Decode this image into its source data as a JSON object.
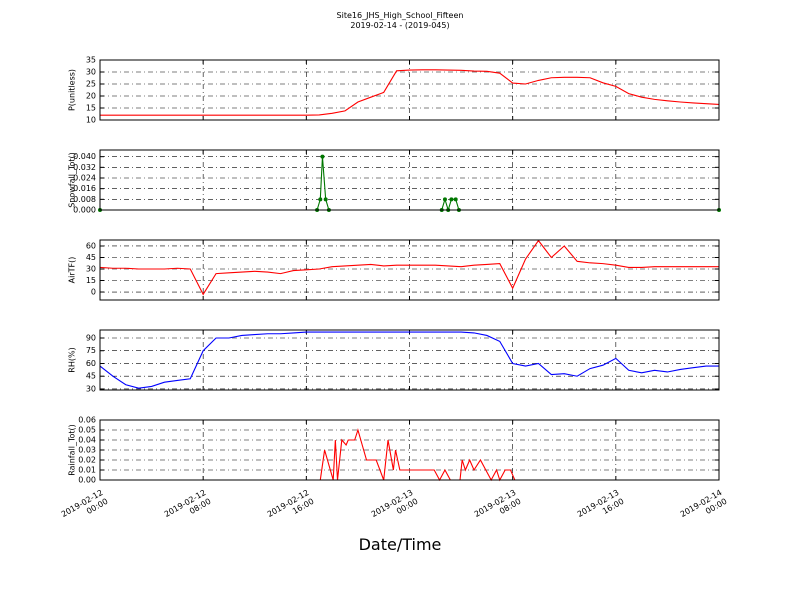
{
  "figure": {
    "title": "Site16_JHS_High_School_Fifteen",
    "subtitle": "2019-02-14 - (2019-045)",
    "xlabel": "Date/Time"
  },
  "chart_data": [
    {
      "type": "line",
      "ylabel": "P(unitless)",
      "ylim": [
        10,
        35
      ],
      "yticks": [
        10,
        15,
        20,
        25,
        30,
        35
      ],
      "grid": true,
      "xlim": [
        "2019-02-12 00:00",
        "2019-02-14 00:00"
      ],
      "xticks": [
        "2019-02-12 00:00",
        "2019-02-12 08:00",
        "2019-02-12 16:00",
        "2019-02-13 00:00",
        "2019-02-13 08:00",
        "2019-02-13 16:00",
        "2019-02-14 00:00"
      ],
      "x": [
        "2019-02-12 00:00",
        "2019-02-12 01:00",
        "2019-02-12 02:00",
        "2019-02-12 03:00",
        "2019-02-12 04:00",
        "2019-02-12 05:00",
        "2019-02-12 06:00",
        "2019-02-12 07:00",
        "2019-02-12 08:00",
        "2019-02-12 09:00",
        "2019-02-12 10:00",
        "2019-02-12 11:00",
        "2019-02-12 12:00",
        "2019-02-12 13:00",
        "2019-02-12 14:00",
        "2019-02-12 15:00",
        "2019-02-12 16:00",
        "2019-02-12 17:00",
        "2019-02-12 18:00",
        "2019-02-12 19:00",
        "2019-02-12 20:00",
        "2019-02-12 21:00",
        "2019-02-12 22:00",
        "2019-02-12 23:00",
        "2019-02-13 00:00",
        "2019-02-13 01:00",
        "2019-02-13 02:00",
        "2019-02-13 03:00",
        "2019-02-13 04:00",
        "2019-02-13 05:00",
        "2019-02-13 06:00",
        "2019-02-13 07:00",
        "2019-02-13 08:00",
        "2019-02-13 09:00",
        "2019-02-13 10:00",
        "2019-02-13 11:00",
        "2019-02-13 12:00",
        "2019-02-13 13:00",
        "2019-02-13 14:00",
        "2019-02-13 15:00",
        "2019-02-13 16:00",
        "2019-02-13 17:00",
        "2019-02-13 18:00",
        "2019-02-13 19:00",
        "2019-02-13 20:00",
        "2019-02-13 21:00",
        "2019-02-13 22:00",
        "2019-02-13 23:00",
        "2019-02-14 00:00"
      ],
      "series": [
        {
          "color": "#ff0000",
          "values": [
            12,
            12,
            12,
            12,
            12,
            12,
            12,
            12,
            12,
            12,
            12,
            12,
            12,
            12,
            12,
            12,
            12,
            12.1,
            12.8,
            13.8,
            17.5,
            19.5,
            21.5,
            30.5,
            30.8,
            30.9,
            30.9,
            30.8,
            30.7,
            30.4,
            30.3,
            29.5,
            25.4,
            25.0,
            26.5,
            27.6,
            27.8,
            27.8,
            27.6,
            25.5,
            24,
            21,
            19.5,
            18.6,
            18.0,
            17.5,
            17.1,
            16.8,
            16.5
          ]
        }
      ]
    },
    {
      "type": "line",
      "ylabel": "Snowfall_Tot()",
      "ylim": [
        0,
        0.045
      ],
      "yticks": [
        {
          "value": 0,
          "label": "0.000"
        },
        {
          "value": 0.008,
          "label": "0.008"
        },
        {
          "value": 0.016,
          "label": "0.016"
        },
        {
          "value": 0.024,
          "label": "0.024"
        },
        {
          "value": 0.032,
          "label": "0.032"
        },
        {
          "value": 0.04,
          "label": "0.040"
        }
      ],
      "grid": true,
      "marker": "o",
      "xlim": [
        "2019-02-12 00:00",
        "2019-02-14 00:00"
      ],
      "xticks": [
        "2019-02-12 00:00",
        "2019-02-12 08:00",
        "2019-02-12 16:00",
        "2019-02-13 00:00",
        "2019-02-13 08:00",
        "2019-02-13 16:00",
        "2019-02-14 00:00"
      ],
      "x": [
        "2019-02-12 00:00",
        "2019-02-12 16:50",
        "2019-02-12 17:05",
        "2019-02-12 17:15",
        "2019-02-12 17:30",
        "2019-02-12 17:45",
        "2019-02-13 02:30",
        "2019-02-13 02:45",
        "2019-02-13 03:00",
        "2019-02-13 03:15",
        "2019-02-13 03:35",
        "2019-02-13 03:50",
        "2019-02-14 00:00"
      ],
      "series": [
        {
          "color": "#007700",
          "values": [
            0,
            0,
            0.008,
            0.04,
            0.008,
            0,
            0,
            0.008,
            0,
            0.008,
            0.008,
            0,
            0
          ]
        }
      ]
    },
    {
      "type": "line",
      "ylabel": "AirTF()",
      "ylim": [
        -10.4,
        67.8
      ],
      "yticks": [
        0,
        15,
        30,
        45,
        60
      ],
      "grid": true,
      "xlim": [
        "2019-02-12 00:00",
        "2019-02-14 00:00"
      ],
      "xticks": [
        "2019-02-12 00:00",
        "2019-02-12 08:00",
        "2019-02-12 16:00",
        "2019-02-13 00:00",
        "2019-02-13 08:00",
        "2019-02-13 16:00",
        "2019-02-14 00:00"
      ],
      "x": [
        "2019-02-12 00:00",
        "2019-02-12 01:00",
        "2019-02-12 02:00",
        "2019-02-12 03:00",
        "2019-02-12 04:00",
        "2019-02-12 05:00",
        "2019-02-12 06:00",
        "2019-02-12 07:00",
        "2019-02-12 08:00",
        "2019-02-12 09:00",
        "2019-02-12 10:00",
        "2019-02-12 11:00",
        "2019-02-12 12:00",
        "2019-02-12 13:00",
        "2019-02-12 14:00",
        "2019-02-12 15:00",
        "2019-02-12 16:00",
        "2019-02-12 17:00",
        "2019-02-12 18:00",
        "2019-02-12 19:00",
        "2019-02-12 20:00",
        "2019-02-12 21:00",
        "2019-02-12 22:00",
        "2019-02-12 23:00",
        "2019-02-13 00:00",
        "2019-02-13 01:00",
        "2019-02-13 02:00",
        "2019-02-13 03:00",
        "2019-02-13 04:00",
        "2019-02-13 05:00",
        "2019-02-13 06:00",
        "2019-02-13 07:00",
        "2019-02-13 08:00",
        "2019-02-13 09:00",
        "2019-02-13 10:00",
        "2019-02-13 11:00",
        "2019-02-13 12:00",
        "2019-02-13 13:00",
        "2019-02-13 14:00",
        "2019-02-13 15:00",
        "2019-02-13 16:00",
        "2019-02-13 17:00",
        "2019-02-13 18:00",
        "2019-02-13 19:00",
        "2019-02-13 20:00",
        "2019-02-13 21:00",
        "2019-02-13 22:00",
        "2019-02-13 23:00",
        "2019-02-14 00:00"
      ],
      "series": [
        {
          "color": "#ff0000",
          "values": [
            32,
            31,
            31,
            30,
            30,
            30,
            31,
            30,
            -3,
            24,
            25,
            26,
            27,
            26,
            24,
            28,
            29,
            30,
            33,
            34,
            35,
            36,
            34,
            35,
            35,
            35,
            35,
            34,
            33,
            35,
            36,
            37,
            5,
            43,
            67,
            45,
            60,
            40,
            38,
            37,
            35,
            32,
            32,
            33,
            33,
            33,
            33,
            33,
            33
          ]
        }
      ]
    },
    {
      "type": "line",
      "ylabel": "RH(%)",
      "ylim": [
        28.8,
        99.4
      ],
      "yticks": [
        30,
        45,
        60,
        75,
        90
      ],
      "grid": true,
      "xlim": [
        "2019-02-12 00:00",
        "2019-02-14 00:00"
      ],
      "xticks": [
        "2019-02-12 00:00",
        "2019-02-12 08:00",
        "2019-02-12 16:00",
        "2019-02-13 00:00",
        "2019-02-13 08:00",
        "2019-02-13 16:00",
        "2019-02-14 00:00"
      ],
      "x": [
        "2019-02-12 00:00",
        "2019-02-12 01:00",
        "2019-02-12 02:00",
        "2019-02-12 03:00",
        "2019-02-12 04:00",
        "2019-02-12 05:00",
        "2019-02-12 06:00",
        "2019-02-12 07:00",
        "2019-02-12 08:00",
        "2019-02-12 09:00",
        "2019-02-12 10:00",
        "2019-02-12 11:00",
        "2019-02-12 12:00",
        "2019-02-12 13:00",
        "2019-02-12 14:00",
        "2019-02-12 15:00",
        "2019-02-12 16:00",
        "2019-02-12 17:00",
        "2019-02-12 18:00",
        "2019-02-12 19:00",
        "2019-02-12 20:00",
        "2019-02-12 21:00",
        "2019-02-12 22:00",
        "2019-02-12 23:00",
        "2019-02-13 00:00",
        "2019-02-13 01:00",
        "2019-02-13 02:00",
        "2019-02-13 03:00",
        "2019-02-13 04:00",
        "2019-02-13 05:00",
        "2019-02-13 06:00",
        "2019-02-13 07:00",
        "2019-02-13 08:00",
        "2019-02-13 09:00",
        "2019-02-13 10:00",
        "2019-02-13 11:00",
        "2019-02-13 12:00",
        "2019-02-13 13:00",
        "2019-02-13 14:00",
        "2019-02-13 15:00",
        "2019-02-13 16:00",
        "2019-02-13 17:00",
        "2019-02-13 18:00",
        "2019-02-13 19:00",
        "2019-02-13 20:00",
        "2019-02-13 21:00",
        "2019-02-13 22:00",
        "2019-02-13 23:00",
        "2019-02-14 00:00"
      ],
      "series": [
        {
          "color": "#0000ff",
          "values": [
            57,
            45,
            35,
            31,
            33,
            38,
            40,
            42,
            75,
            90,
            90,
            93,
            94,
            95,
            95,
            96,
            97,
            97,
            97,
            97,
            97,
            97,
            97,
            97,
            97,
            97,
            97,
            97,
            97,
            96,
            93,
            86,
            60,
            57,
            60,
            47,
            48,
            45,
            54,
            58,
            66,
            52,
            49,
            52,
            50,
            53,
            55,
            57,
            57
          ]
        }
      ]
    },
    {
      "type": "line",
      "ylabel": "Rainfall_Tot()",
      "ylim": [
        0,
        0.06
      ],
      "yticks": [
        {
          "value": 0,
          "label": "0.00"
        },
        {
          "value": 0.01,
          "label": "0.01"
        },
        {
          "value": 0.02,
          "label": "0.02"
        },
        {
          "value": 0.03,
          "label": "0.03"
        },
        {
          "value": 0.04,
          "label": "0.04"
        },
        {
          "value": 0.05,
          "label": "0.05"
        },
        {
          "value": 0.06,
          "label": "0.06"
        }
      ],
      "grid": true,
      "xlim": [
        "2019-02-12 00:00",
        "2019-02-14 00:00"
      ],
      "xticks": [
        "2019-02-12 00:00",
        "2019-02-12 08:00",
        "2019-02-12 16:00",
        "2019-02-13 00:00",
        "2019-02-13 08:00",
        "2019-02-13 16:00",
        "2019-02-14 00:00"
      ],
      "x": [
        "2019-02-12 00:00",
        "2019-02-12 17:05",
        "2019-02-12 17:25",
        "2019-02-12 18:05",
        "2019-02-12 18:15",
        "2019-02-12 18:25",
        "2019-02-12 18:45",
        "2019-02-12 19:05",
        "2019-02-12 19:15",
        "2019-02-12 19:45",
        "2019-02-12 20:00",
        "2019-02-12 20:40",
        "2019-02-12 21:25",
        "2019-02-12 22:00",
        "2019-02-12 22:20",
        "2019-02-12 22:45",
        "2019-02-12 22:55",
        "2019-02-12 23:15",
        "2019-02-13 01:55",
        "2019-02-13 02:20",
        "2019-02-13 02:45",
        "2019-02-13 03:10",
        "2019-02-13 03:55",
        "2019-02-13 04:05",
        "2019-02-13 04:20",
        "2019-02-13 04:40",
        "2019-02-13 05:00",
        "2019-02-13 05:30",
        "2019-02-13 05:55",
        "2019-02-13 06:20",
        "2019-02-13 06:45",
        "2019-02-13 07:00",
        "2019-02-13 07:25",
        "2019-02-13 07:50",
        "2019-02-13 08:10",
        "2019-02-14 00:00"
      ],
      "series": [
        {
          "color": "#ff0000",
          "values": [
            0,
            0,
            0.03,
            0,
            0.04,
            0,
            0.04,
            0.035,
            0.04,
            0.04,
            0.05,
            0.02,
            0.02,
            0,
            0.04,
            0.01,
            0.03,
            0.01,
            0.01,
            0,
            0.01,
            0,
            0,
            0.02,
            0.01,
            0.02,
            0.01,
            0.02,
            0.01,
            0,
            0.01,
            0,
            0.01,
            0.01,
            0,
            0
          ]
        }
      ]
    }
  ]
}
